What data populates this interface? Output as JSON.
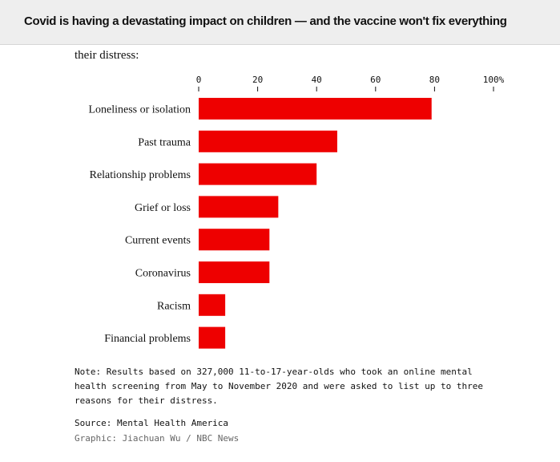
{
  "header": {
    "title": "Covid is having a devastating impact on children — and the vaccine won't fix everything"
  },
  "subtitle": "their distress:",
  "chart_data": {
    "type": "bar",
    "orientation": "horizontal",
    "categories": [
      "Loneliness or isolation",
      "Past trauma",
      "Relationship problems",
      "Grief or loss",
      "Current events",
      "Coronavirus",
      "Racism",
      "Financial problems"
    ],
    "values": [
      79,
      47,
      40,
      27,
      24,
      24,
      9,
      9
    ],
    "xlim": [
      0,
      100
    ],
    "xticks": [
      "0",
      "20",
      "40",
      "60",
      "80",
      "100%"
    ],
    "axis_position": "top",
    "grid": false,
    "bar_color": "#ee0000"
  },
  "note": "Note: Results based on 327,000 11-to-17-year-olds who took an online mental health screening from May to November 2020 and were asked to list up to three reasons for their distress.",
  "source": "Source: Mental Health America",
  "credit": "Graphic: Jiachuan Wu / NBC News"
}
